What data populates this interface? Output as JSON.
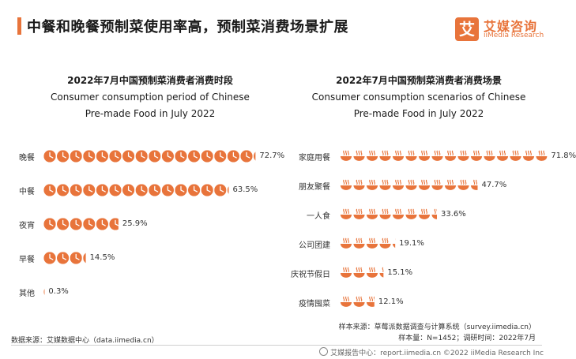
{
  "header": {
    "title": "中餐和晚餐预制菜使用率高，预制菜消费场景扩展",
    "logo_mark": "艾",
    "logo_cn": "艾媒咨询",
    "logo_en": "iiMedia Research"
  },
  "chart_data": [
    {
      "type": "bar",
      "title_cn": "2022年7月中国预制菜消费者消费时段",
      "title_en_1": "Consumer consumption period of Chinese",
      "title_en_2": "Pre-made Food in July 2022",
      "icon": "clock-icon",
      "color": "#e8743b",
      "unit": "%",
      "categories": [
        "晚餐",
        "中餐",
        "夜宵",
        "早餐",
        "其他"
      ],
      "values": [
        72.7,
        63.5,
        25.9,
        14.5,
        0.3
      ],
      "value_labels": [
        "72.7%",
        "63.5%",
        "25.9%",
        "14.5%",
        "0.3%"
      ]
    },
    {
      "type": "bar",
      "title_cn": "2022年7月中国预制菜消费者消费场景",
      "title_en_1": "Consumer consumption scenarios of Chinese",
      "title_en_2": "Pre-made Food in July 2022",
      "icon": "steaming-bowl-icon",
      "color": "#e8743b",
      "unit": "%",
      "categories": [
        "家庭用餐",
        "朋友聚餐",
        "一人食",
        "公司团建",
        "庆祝节假日",
        "疫情囤菜"
      ],
      "values": [
        71.8,
        47.7,
        33.6,
        19.1,
        15.1,
        12.1
      ],
      "value_labels": [
        "71.8%",
        "47.7%",
        "33.6%",
        "19.1%",
        "15.1%",
        "12.1%"
      ]
    }
  ],
  "notes": {
    "sample_source": "样本来源：草莓派数据调查与计算系统（survey.iimedia.cn）",
    "sample_info": "样本量：N=1452；调研时间：2022年7月",
    "data_source": "数据来源：艾媒数据中心（data.iimedia.cn）"
  },
  "footer": {
    "text": "艾媒报告中心：report.iimedia.cn  ©2022  iiMedia Research  Inc"
  }
}
